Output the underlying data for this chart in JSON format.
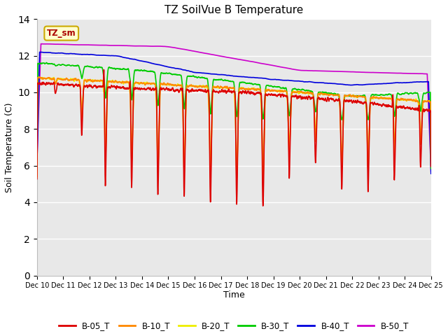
{
  "title": "TZ SoilVue B Temperature",
  "ylabel": "Soil Temperature (C)",
  "xlabel": "Time",
  "ylim": [
    0,
    14
  ],
  "yticks": [
    0,
    2,
    4,
    6,
    8,
    10,
    12,
    14
  ],
  "background_color": "#ffffff",
  "plot_bg_color": "#e8e8e8",
  "legend_box_color": "#ffffcc",
  "legend_box_edge": "#ccaa00",
  "annotation_text": "TZ_sm",
  "series_colors": {
    "B-05_T": "#dd0000",
    "B-10_T": "#ff8800",
    "B-20_T": "#eeee00",
    "B-30_T": "#00cc00",
    "B-40_T": "#0000dd",
    "B-50_T": "#cc00cc"
  },
  "tick_labels": [
    "Dec 10",
    "Dec 11",
    "Dec 12",
    "Dec 13",
    "Dec 14",
    "Dec 15",
    "Dec 16",
    "Dec 17",
    "Dec 18",
    "Dec 19",
    "Dec 20",
    "Dec 21",
    "Dec 22",
    "Dec 23",
    "Dec 24",
    "Dec 25"
  ],
  "n_points": 3000,
  "start_day": 0,
  "end_day": 15
}
